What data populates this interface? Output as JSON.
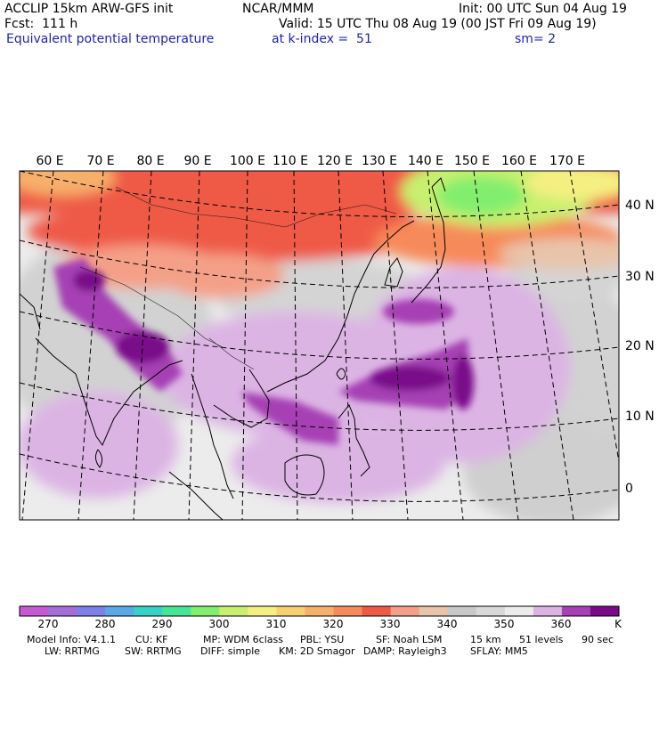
{
  "header": {
    "model_line": "ACCLIP 15km ARW-GFS init",
    "center": "NCAR/MMM",
    "init": "Init: 00 UTC Sun 04 Aug 19",
    "fcst": "Fcst:  111 h",
    "valid": "Valid: 15 UTC Thu 08 Aug 19 (00 JST Fri 09 Aug 19)",
    "field": "Equivalent potential temperature",
    "level": "at k-index =  51",
    "smooth": "sm= 2"
  },
  "map": {
    "lon_labels": [
      "60 E",
      "70 E",
      "80 E",
      "90 E",
      "100 E",
      "110 E",
      "120 E",
      "130 E",
      "140 E",
      "150 E",
      "160 E",
      "170 E"
    ],
    "lat_labels": [
      "40 N",
      "30 N",
      "20 N",
      "10 N",
      "0"
    ]
  },
  "colorbar": {
    "unit": "K",
    "tick_labels": [
      "270",
      "280",
      "290",
      "300",
      "310",
      "320",
      "330",
      "340",
      "350",
      "360"
    ],
    "colors": [
      "#c65ad2",
      "#a46ed8",
      "#7f7fe8",
      "#5aa8e6",
      "#36d2c8",
      "#46e696",
      "#82ee6e",
      "#c8f06e",
      "#f5ef82",
      "#f7d070",
      "#f7b06c",
      "#f78a5a",
      "#ef5a46",
      "#f4a088",
      "#e8c4aa",
      "#c8c8c8",
      "#d8d8d8",
      "#ececec",
      "#dcb4e4",
      "#a640b4",
      "#7a0a8a"
    ]
  },
  "footer": {
    "row1": [
      "Model Info: V4.1.1",
      "CU: KF",
      "MP: WDM 6class",
      "PBL: YSU",
      "SF: Noah LSM",
      "15 km",
      "51 levels",
      "90 sec"
    ],
    "row2": [
      "LW: RRTMG",
      "SW: RRTMG",
      "DIFF: simple",
      "KM: 2D Smagor",
      "DAMP: Rayleigh3",
      "SFLAY: MM5"
    ]
  }
}
